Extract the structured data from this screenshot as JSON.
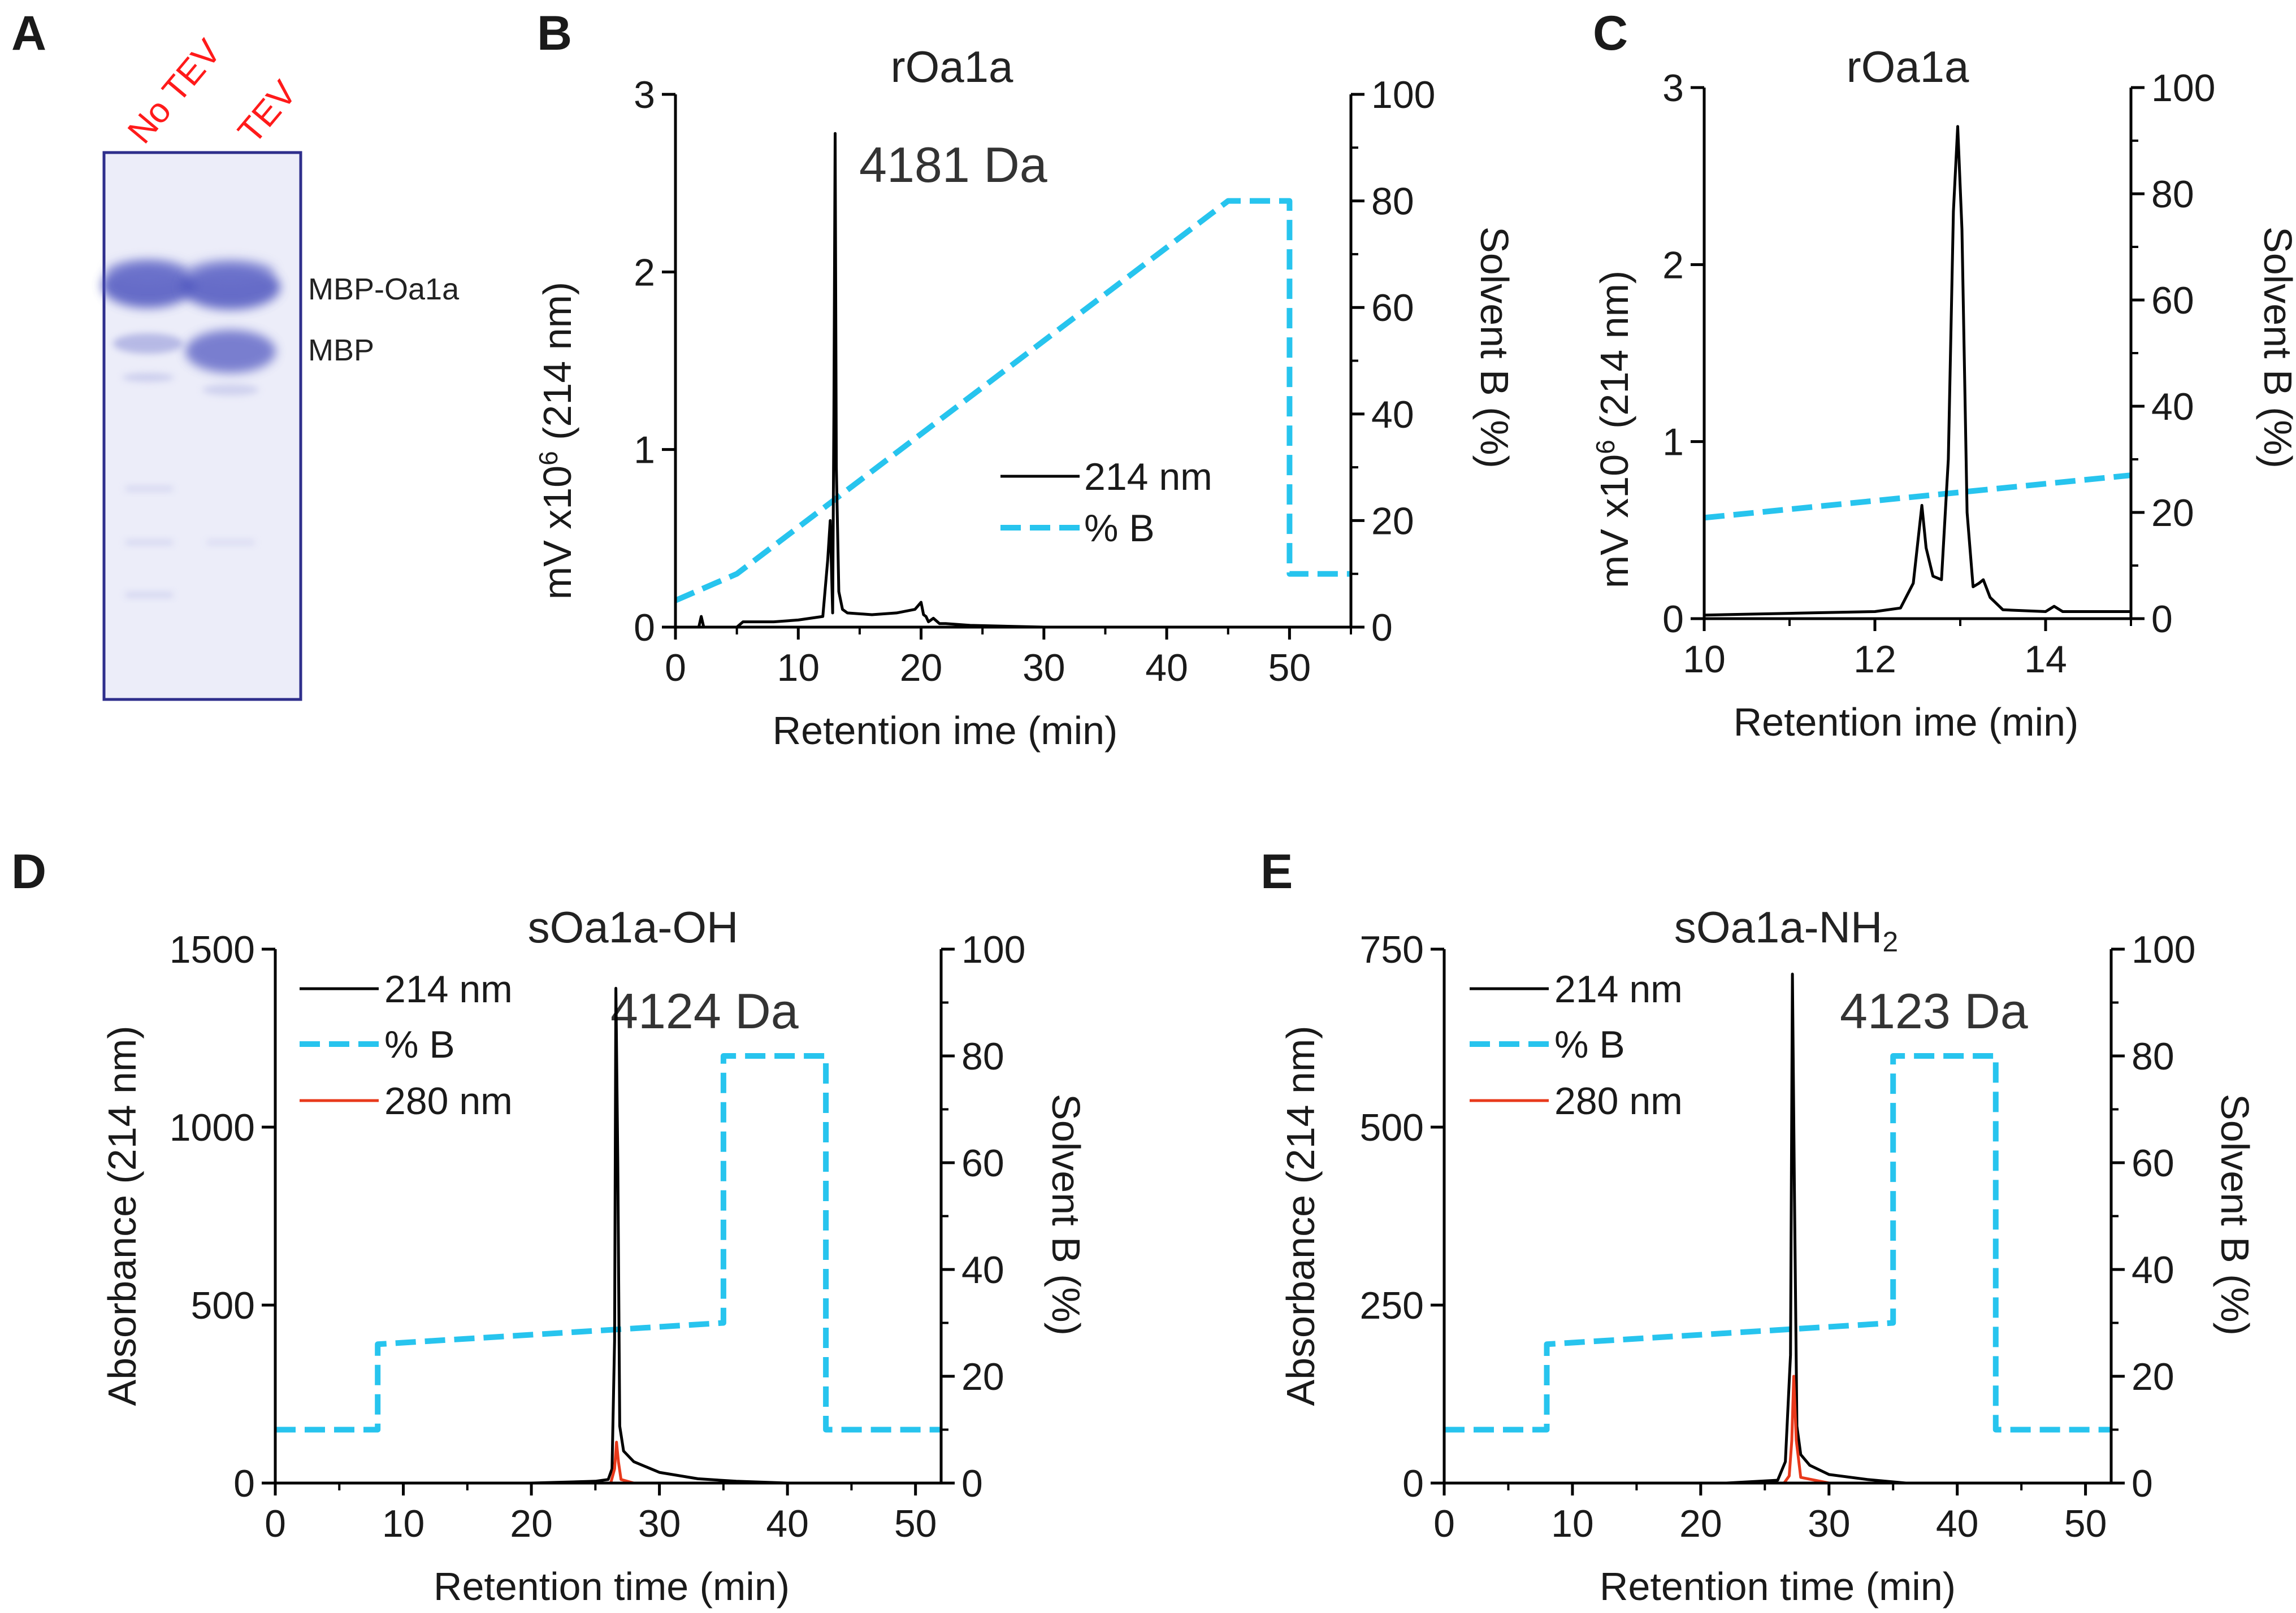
{
  "figure": {
    "colors": {
      "trace_214": "#000000",
      "trace_280": "#e8391b",
      "percent_b": "#27c4ee",
      "lane_label": "#ff1a1a",
      "gel_band": "#4f57c0",
      "gel_frame": "#2e2e8c"
    }
  },
  "panel_a": {
    "label": "A",
    "lanes": [
      "No TEV",
      "TEV"
    ],
    "bands": [
      "MBP-Oa1a",
      "MBP"
    ]
  },
  "chart_data": [
    {
      "id": "B",
      "label": "B",
      "type": "line",
      "title": "rOa1a",
      "annotation": "4181 Da",
      "xlabel": "Retention ime (min)",
      "ylabel_prefix": "mV x10",
      "ylabel_sup": "6",
      "ylabel_suffix": " (214 nm)",
      "y2label": "Solvent B (%)",
      "xlim": [
        0,
        55
      ],
      "ylim": [
        0,
        3
      ],
      "y2lim": [
        0,
        100
      ],
      "xticks": [
        0,
        10,
        20,
        30,
        40,
        50
      ],
      "yticks": [
        0,
        1,
        2,
        3
      ],
      "y2ticks": [
        0,
        20,
        40,
        60,
        80,
        100
      ],
      "legend": [
        "214 nm",
        "% B"
      ],
      "series": [
        {
          "name": "214 nm",
          "color": "#000000",
          "axis": "left",
          "x": [
            0,
            1.9,
            2.1,
            2.3,
            5,
            5.5,
            8,
            10,
            12,
            12.4,
            12.6,
            12.8,
            12.9,
            13.0,
            13.1,
            13.3,
            13.6,
            14,
            16,
            18,
            19.5,
            20,
            20.2,
            20.4,
            20.6,
            21,
            21.5,
            22,
            24,
            30,
            55
          ],
          "y": [
            0.0,
            0.0,
            0.06,
            0.0,
            0.0,
            0.03,
            0.03,
            0.04,
            0.06,
            0.38,
            0.6,
            0.08,
            1.2,
            2.78,
            0.9,
            0.2,
            0.1,
            0.08,
            0.07,
            0.08,
            0.1,
            0.14,
            0.07,
            0.06,
            0.03,
            0.05,
            0.02,
            0.02,
            0.01,
            0.0,
            0.0
          ]
        },
        {
          "name": "% B",
          "color": "#27c4ee",
          "axis": "right",
          "dashed": true,
          "x": [
            0,
            5,
            45,
            50,
            50,
            55
          ],
          "y": [
            5,
            10,
            80,
            80,
            10,
            10
          ]
        }
      ]
    },
    {
      "id": "C",
      "label": "C",
      "type": "line",
      "title": "rOa1a",
      "xlabel": "Retention ime (min)",
      "ylabel_prefix": "mV x10",
      "ylabel_sup": "6",
      "ylabel_suffix": " (214 nm)",
      "y2label": "Solvent B (%)",
      "xlim": [
        10,
        15
      ],
      "ylim": [
        0,
        3
      ],
      "y2lim": [
        0,
        100
      ],
      "xticks": [
        10,
        12,
        14
      ],
      "yticks": [
        0,
        1,
        2,
        3
      ],
      "y2ticks": [
        0,
        20,
        40,
        60,
        80,
        100
      ],
      "series": [
        {
          "name": "214 nm",
          "color": "#000000",
          "axis": "left",
          "x": [
            10,
            11,
            12,
            12.3,
            12.45,
            12.55,
            12.6,
            12.68,
            12.78,
            12.86,
            12.92,
            12.97,
            13.02,
            13.08,
            13.15,
            13.22,
            13.27,
            13.35,
            13.5,
            14,
            14.1,
            14.2,
            15
          ],
          "y": [
            0.02,
            0.03,
            0.04,
            0.06,
            0.2,
            0.64,
            0.4,
            0.24,
            0.22,
            0.9,
            2.3,
            2.78,
            2.2,
            0.6,
            0.18,
            0.2,
            0.22,
            0.12,
            0.05,
            0.04,
            0.07,
            0.04,
            0.04
          ]
        },
        {
          "name": "% B",
          "color": "#27c4ee",
          "axis": "right",
          "dashed": true,
          "x": [
            10,
            15
          ],
          "y": [
            19,
            27
          ]
        }
      ]
    },
    {
      "id": "D",
      "label": "D",
      "type": "line",
      "title": "sOa1a-OH",
      "annotation": "4124 Da",
      "xlabel": "Retention time (min)",
      "ylabel": "Absorbance (214 nm)",
      "y2label": "Solvent B (%)",
      "xlim": [
        0,
        52
      ],
      "ylim": [
        0,
        1500
      ],
      "y2lim": [
        0,
        100
      ],
      "xticks": [
        0,
        10,
        20,
        30,
        40,
        50
      ],
      "yticks": [
        0,
        500,
        1000,
        1500
      ],
      "y2ticks": [
        0,
        20,
        40,
        60,
        80,
        100
      ],
      "legend": [
        "214 nm",
        "% B",
        "280 nm"
      ],
      "series": [
        {
          "name": "214 nm",
          "color": "#000000",
          "axis": "left",
          "x": [
            0,
            20,
            25,
            26.0,
            26.3,
            26.5,
            26.6,
            26.75,
            26.9,
            27.2,
            28,
            30,
            33,
            36,
            40,
            52
          ],
          "y": [
            0,
            0,
            5,
            10,
            40,
            400,
            1390,
            900,
            160,
            90,
            60,
            30,
            12,
            5,
            0,
            0
          ]
        },
        {
          "name": "% B",
          "color": "#27c4ee",
          "axis": "right",
          "dashed": true,
          "x": [
            0,
            8,
            8,
            35,
            35,
            43,
            43,
            52
          ],
          "y": [
            10,
            10,
            26,
            30,
            80,
            80,
            10,
            10
          ]
        },
        {
          "name": "280 nm",
          "color": "#e8391b",
          "axis": "left",
          "x": [
            0,
            25,
            26.2,
            26.5,
            26.65,
            26.8,
            27.0,
            28,
            52
          ],
          "y": [
            0,
            0,
            0,
            40,
            115,
            60,
            10,
            0,
            0
          ]
        }
      ]
    },
    {
      "id": "E",
      "label": "E",
      "type": "line",
      "title": "sOa1a-NH",
      "title_sub": "2",
      "annotation": "4123 Da",
      "xlabel": "Retention time (min)",
      "ylabel": "Absorbance (214 nm)",
      "y2label": "Solvent B (%)",
      "xlim": [
        0,
        52
      ],
      "ylim": [
        0,
        750
      ],
      "y2lim": [
        0,
        100
      ],
      "xticks": [
        0,
        10,
        20,
        30,
        40,
        50
      ],
      "yticks": [
        0,
        250,
        500,
        750
      ],
      "y2ticks": [
        0,
        20,
        40,
        60,
        80,
        100
      ],
      "legend": [
        "214 nm",
        "% B",
        "280 nm"
      ],
      "series": [
        {
          "name": "214 nm",
          "color": "#000000",
          "axis": "left",
          "x": [
            0,
            22,
            26.0,
            26.6,
            27.0,
            27.15,
            27.3,
            27.5,
            27.8,
            28.5,
            30,
            33,
            36,
            52
          ],
          "y": [
            0,
            0,
            4,
            30,
            180,
            715,
            420,
            80,
            40,
            25,
            12,
            5,
            0,
            0
          ]
        },
        {
          "name": "% B",
          "color": "#27c4ee",
          "axis": "right",
          "dashed": true,
          "x": [
            0,
            8,
            8,
            35,
            35,
            43,
            43,
            52
          ],
          "y": [
            10,
            10,
            26,
            30,
            80,
            80,
            10,
            10
          ]
        },
        {
          "name": "280 nm",
          "color": "#e8391b",
          "axis": "left",
          "x": [
            0,
            26.5,
            26.9,
            27.1,
            27.25,
            27.45,
            27.8,
            30,
            52
          ],
          "y": [
            0,
            0,
            10,
            60,
            150,
            60,
            8,
            0,
            0
          ]
        }
      ]
    }
  ]
}
